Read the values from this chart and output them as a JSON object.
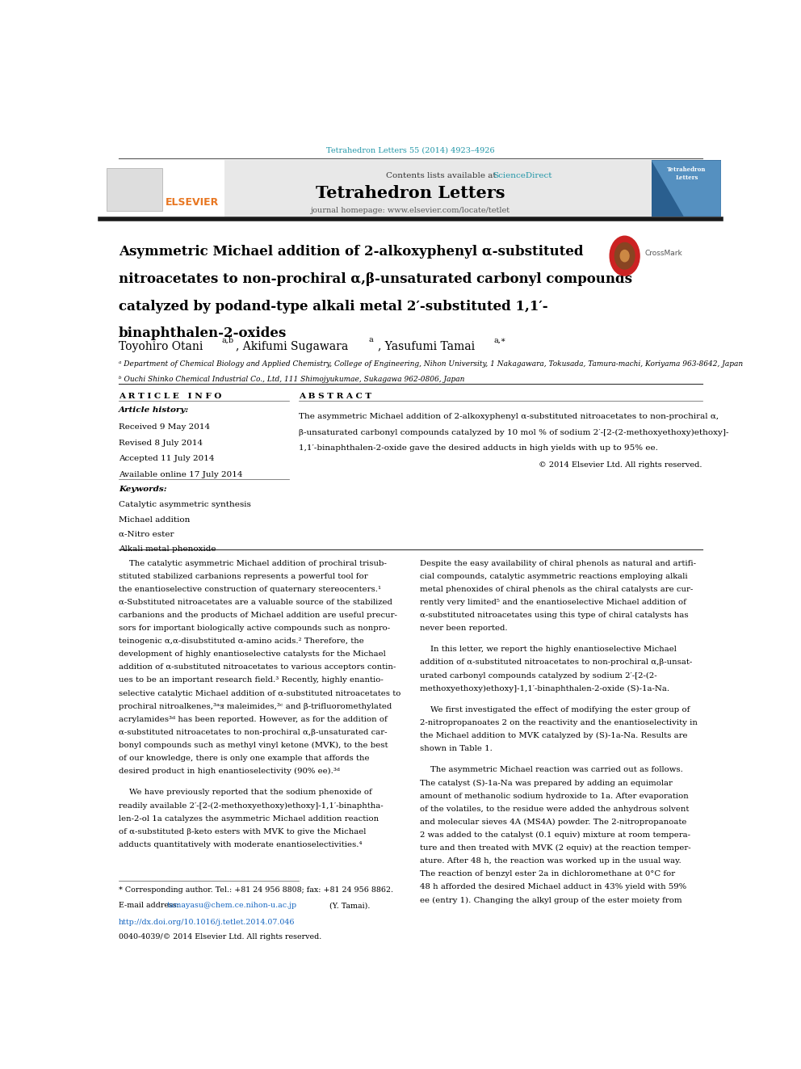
{
  "bg_color": "#ffffff",
  "page_width": 9.92,
  "page_height": 13.23,
  "top_citation": "Tetrahedron Letters 55 (2014) 4923–4926",
  "top_citation_color": "#2196a8",
  "header_bg": "#e8e8e8",
  "header_text": "Contents lists available at ",
  "header_scidir": "ScienceDirect",
  "header_scidir_color": "#2196a8",
  "journal_title": "Tetrahedron Letters",
  "journal_title_color": "#000000",
  "journal_homepage": "journal homepage: www.elsevier.com/locate/tetlet",
  "elsevier_color": "#e87722",
  "thick_rule_color": "#1a1a1a",
  "article_title_line1": "Asymmetric Michael addition of 2-alkoxyphenyl α-substituted",
  "article_title_line2": "nitroacetates to non-prochiral α,β-unsaturated carbonyl compounds",
  "article_title_line3": "catalyzed by podand-type alkali metal 2′-substituted 1,1′-",
  "article_title_line4": "binaphthalen-2-oxides",
  "article_info_header": "A R T I C L E   I N F O",
  "abstract_header": "A B S T R A C T",
  "article_history_label": "Article history:",
  "received": "Received 9 May 2014",
  "revised": "Revised 8 July 2014",
  "accepted": "Accepted 11 July 2014",
  "available": "Available online 17 July 2014",
  "keywords_label": "Keywords:",
  "keyword1": "Catalytic asymmetric synthesis",
  "keyword2": "Michael addition",
  "keyword3": "α-Nitro ester",
  "keyword4": "Alkali metal phenoxide",
  "copyright": "© 2014 Elsevier Ltd. All rights reserved.",
  "footnote_star": "* Corresponding author. Tel.: +81 24 956 8808; fax: +81 24 956 8862.",
  "footnote_email_prefix": "E-mail address: ",
  "footnote_email": "tamayasu@chem.ce.nihon-u.ac.jp",
  "footnote_email_suffix": " (Y. Tamai).",
  "footnote_doi": "http://dx.doi.org/10.1016/j.tetlet.2014.07.046",
  "footnote_issn": "0040-4039/© 2014 Elsevier Ltd. All rights reserved.",
  "doi_color": "#1565c0"
}
